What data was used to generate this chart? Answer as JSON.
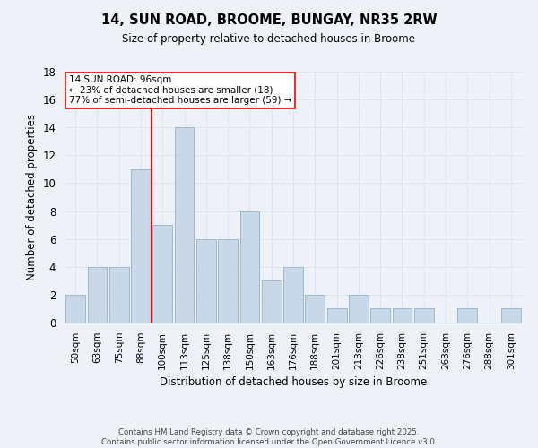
{
  "title": "14, SUN ROAD, BROOME, BUNGAY, NR35 2RW",
  "subtitle": "Size of property relative to detached houses in Broome",
  "xlabel": "Distribution of detached houses by size in Broome",
  "ylabel": "Number of detached properties",
  "footnote1": "Contains HM Land Registry data © Crown copyright and database right 2025.",
  "footnote2": "Contains public sector information licensed under the Open Government Licence v3.0.",
  "bar_labels": [
    "50sqm",
    "63sqm",
    "75sqm",
    "88sqm",
    "100sqm",
    "113sqm",
    "125sqm",
    "138sqm",
    "150sqm",
    "163sqm",
    "176sqm",
    "188sqm",
    "201sqm",
    "213sqm",
    "226sqm",
    "238sqm",
    "251sqm",
    "263sqm",
    "276sqm",
    "288sqm",
    "301sqm"
  ],
  "bar_values": [
    2,
    4,
    4,
    11,
    7,
    14,
    6,
    6,
    8,
    3,
    4,
    2,
    1,
    2,
    1,
    1,
    1,
    0,
    1,
    0,
    1
  ],
  "bar_color": "#c8d8e8",
  "bar_edge_color": "#a0b8d0",
  "vline_x_index": 4,
  "vline_color": "red",
  "annotation_text": "14 SUN ROAD: 96sqm\n← 23% of detached houses are smaller (18)\n77% of semi-detached houses are larger (59) →",
  "annotation_box_color": "white",
  "annotation_box_edge": "red",
  "ylim": [
    0,
    18
  ],
  "yticks": [
    0,
    2,
    4,
    6,
    8,
    10,
    12,
    14,
    16,
    18
  ],
  "grid_color": "#dce8f0",
  "background_color": "#eef2f8"
}
